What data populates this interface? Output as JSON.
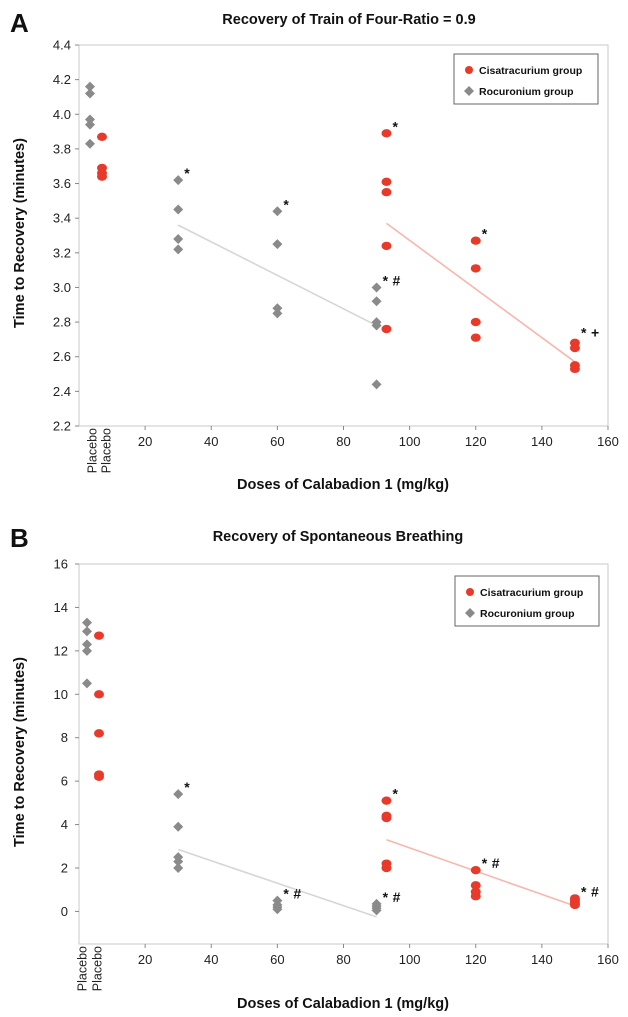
{
  "colors": {
    "cisatracurium": "#e83a2a",
    "rocuronium": "#8a8a8a",
    "cis_trend": "#f7b7ae",
    "roc_trend": "#d6d6d6",
    "frame": "#c9c9c9",
    "text": "#111111"
  },
  "chart_data": [
    {
      "panel_letter": "A",
      "type": "scatter",
      "title": "Recovery of Train of Four-Ratio = 0.9",
      "xlabel": "Doses of Calabadion 1 (mg/kg)",
      "ylabel": "Time to Recovery (minutes)",
      "xlim": [
        0,
        160
      ],
      "ylim": [
        2.2,
        4.4
      ],
      "xticks": [
        20,
        40,
        60,
        80,
        100,
        120,
        140,
        160
      ],
      "yticks": [
        "2.2",
        "2.4",
        "2.6",
        "2.8",
        "3.0",
        "3.2",
        "3.4",
        "3.6",
        "3.8",
        "4.0",
        "4.2",
        "4.4"
      ],
      "placebo_labels": [
        "Placebo",
        "Placebo"
      ],
      "grid": false,
      "legend": {
        "position": "top-right",
        "entries": [
          "Cisatracurium group",
          "Rocuronium group"
        ]
      },
      "series": [
        {
          "name": "Cisatracurium group",
          "marker": "circle",
          "points": [
            {
              "x": "Placebo",
              "y": 3.87
            },
            {
              "x": "Placebo",
              "y": 3.69
            },
            {
              "x": "Placebo",
              "y": 3.66
            },
            {
              "x": "Placebo",
              "y": 3.64
            },
            {
              "x": 93,
              "y": 3.89
            },
            {
              "x": 93,
              "y": 3.61
            },
            {
              "x": 93,
              "y": 3.55
            },
            {
              "x": 93,
              "y": 3.24
            },
            {
              "x": 93,
              "y": 2.76
            },
            {
              "x": 120,
              "y": 3.27
            },
            {
              "x": 120,
              "y": 3.11
            },
            {
              "x": 120,
              "y": 2.8
            },
            {
              "x": 120,
              "y": 2.71
            },
            {
              "x": 150,
              "y": 2.68
            },
            {
              "x": 150,
              "y": 2.65
            },
            {
              "x": 150,
              "y": 2.55
            },
            {
              "x": 150,
              "y": 2.53
            }
          ],
          "trend": {
            "x": [
              93,
              150
            ],
            "y": [
              3.37,
              2.57
            ]
          }
        },
        {
          "name": "Rocuronium group",
          "marker": "diamond",
          "points": [
            {
              "x": "Placebo",
              "y": 4.16
            },
            {
              "x": "Placebo",
              "y": 4.12
            },
            {
              "x": "Placebo",
              "y": 3.97
            },
            {
              "x": "Placebo",
              "y": 3.94
            },
            {
              "x": "Placebo",
              "y": 3.83
            },
            {
              "x": 30,
              "y": 3.62
            },
            {
              "x": 30,
              "y": 3.45
            },
            {
              "x": 30,
              "y": 3.28
            },
            {
              "x": 30,
              "y": 3.22
            },
            {
              "x": 60,
              "y": 3.44
            },
            {
              "x": 60,
              "y": 3.25
            },
            {
              "x": 60,
              "y": 2.88
            },
            {
              "x": 60,
              "y": 2.85
            },
            {
              "x": 90,
              "y": 3.0
            },
            {
              "x": 90,
              "y": 2.92
            },
            {
              "x": 90,
              "y": 2.8
            },
            {
              "x": 90,
              "y": 2.78
            },
            {
              "x": 90,
              "y": 2.44
            }
          ],
          "trend": {
            "x": [
              30,
              90
            ],
            "y": [
              3.36,
              2.78
            ]
          }
        }
      ],
      "annotations": [
        {
          "x": 30,
          "y": 3.62,
          "text": "*"
        },
        {
          "x": 60,
          "y": 3.44,
          "text": "*"
        },
        {
          "x": 90,
          "y": 3.0,
          "text": "*"
        },
        {
          "x": 93,
          "y": 3.0,
          "text": "#"
        },
        {
          "x": 93,
          "y": 3.89,
          "text": "*"
        },
        {
          "x": 120,
          "y": 3.27,
          "text": "*"
        },
        {
          "x": 150,
          "y": 2.7,
          "text": "*"
        },
        {
          "x": 150,
          "y": 2.7,
          "text": "+"
        }
      ]
    },
    {
      "panel_letter": "B",
      "type": "scatter",
      "title": "Recovery of Spontaneous Breathing",
      "xlabel": "Doses of Calabadion 1 (mg/kg)",
      "ylabel": "Time to Recovery (minutes)",
      "xlim": [
        0,
        160
      ],
      "ylim": [
        -1.5,
        16
      ],
      "xticks": [
        20,
        40,
        60,
        80,
        100,
        120,
        140,
        160
      ],
      "yticks": [
        "0",
        "2",
        "4",
        "6",
        "8",
        "10",
        "12",
        "14",
        "16"
      ],
      "placebo_labels": [
        "Placebo",
        "Placebo"
      ],
      "grid": false,
      "legend": {
        "position": "top-right",
        "entries": [
          "Cisatracurium group",
          "Rocuronium group"
        ]
      },
      "series": [
        {
          "name": "Cisatracurium group",
          "marker": "circle",
          "points": [
            {
              "x": "Placebo",
              "y": 12.7
            },
            {
              "x": "Placebo",
              "y": 10.0
            },
            {
              "x": "Placebo",
              "y": 8.2
            },
            {
              "x": "Placebo",
              "y": 6.3
            },
            {
              "x": "Placebo",
              "y": 6.2
            },
            {
              "x": 93,
              "y": 5.1
            },
            {
              "x": 93,
              "y": 4.4
            },
            {
              "x": 93,
              "y": 4.3
            },
            {
              "x": 93,
              "y": 2.2
            },
            {
              "x": 93,
              "y": 2.0
            },
            {
              "x": 120,
              "y": 1.9
            },
            {
              "x": 120,
              "y": 1.2
            },
            {
              "x": 120,
              "y": 0.9
            },
            {
              "x": 120,
              "y": 0.7
            },
            {
              "x": 150,
              "y": 0.6
            },
            {
              "x": 150,
              "y": 0.5
            },
            {
              "x": 150,
              "y": 0.4
            },
            {
              "x": 150,
              "y": 0.3
            }
          ],
          "trend": {
            "x": [
              93,
              150
            ],
            "y": [
              3.3,
              0.25
            ]
          }
        },
        {
          "name": "Rocuronium group",
          "marker": "diamond",
          "points": [
            {
              "x": "Placebo",
              "y": 13.3
            },
            {
              "x": "Placebo",
              "y": 12.9
            },
            {
              "x": "Placebo",
              "y": 12.3
            },
            {
              "x": "Placebo",
              "y": 12.0
            },
            {
              "x": "Placebo",
              "y": 10.5
            },
            {
              "x": 30,
              "y": 5.4
            },
            {
              "x": 30,
              "y": 3.9
            },
            {
              "x": 30,
              "y": 2.5
            },
            {
              "x": 30,
              "y": 2.3
            },
            {
              "x": 30,
              "y": 2.0
            },
            {
              "x": 60,
              "y": 0.5
            },
            {
              "x": 60,
              "y": 0.3
            },
            {
              "x": 60,
              "y": 0.2
            },
            {
              "x": 60,
              "y": 0.1
            },
            {
              "x": 90,
              "y": 0.35
            },
            {
              "x": 90,
              "y": 0.25
            },
            {
              "x": 90,
              "y": 0.15
            },
            {
              "x": 90,
              "y": 0.05
            }
          ],
          "trend": {
            "x": [
              30,
              90
            ],
            "y": [
              2.85,
              -0.25
            ]
          }
        }
      ],
      "annotations": [
        {
          "x": 30,
          "y": 5.4,
          "text": "*"
        },
        {
          "x": 60,
          "y": 0.5,
          "text": "*"
        },
        {
          "x": 60,
          "y": 0.5,
          "text": "#"
        },
        {
          "x": 90,
          "y": 0.35,
          "text": "*"
        },
        {
          "x": 90,
          "y": 0.35,
          "text": "#"
        },
        {
          "x": 93,
          "y": 5.1,
          "text": "*"
        },
        {
          "x": 120,
          "y": 1.9,
          "text": "*"
        },
        {
          "x": 120,
          "y": 1.9,
          "text": "#"
        },
        {
          "x": 150,
          "y": 0.6,
          "text": "*"
        },
        {
          "x": 150,
          "y": 0.6,
          "text": "#"
        }
      ]
    }
  ]
}
